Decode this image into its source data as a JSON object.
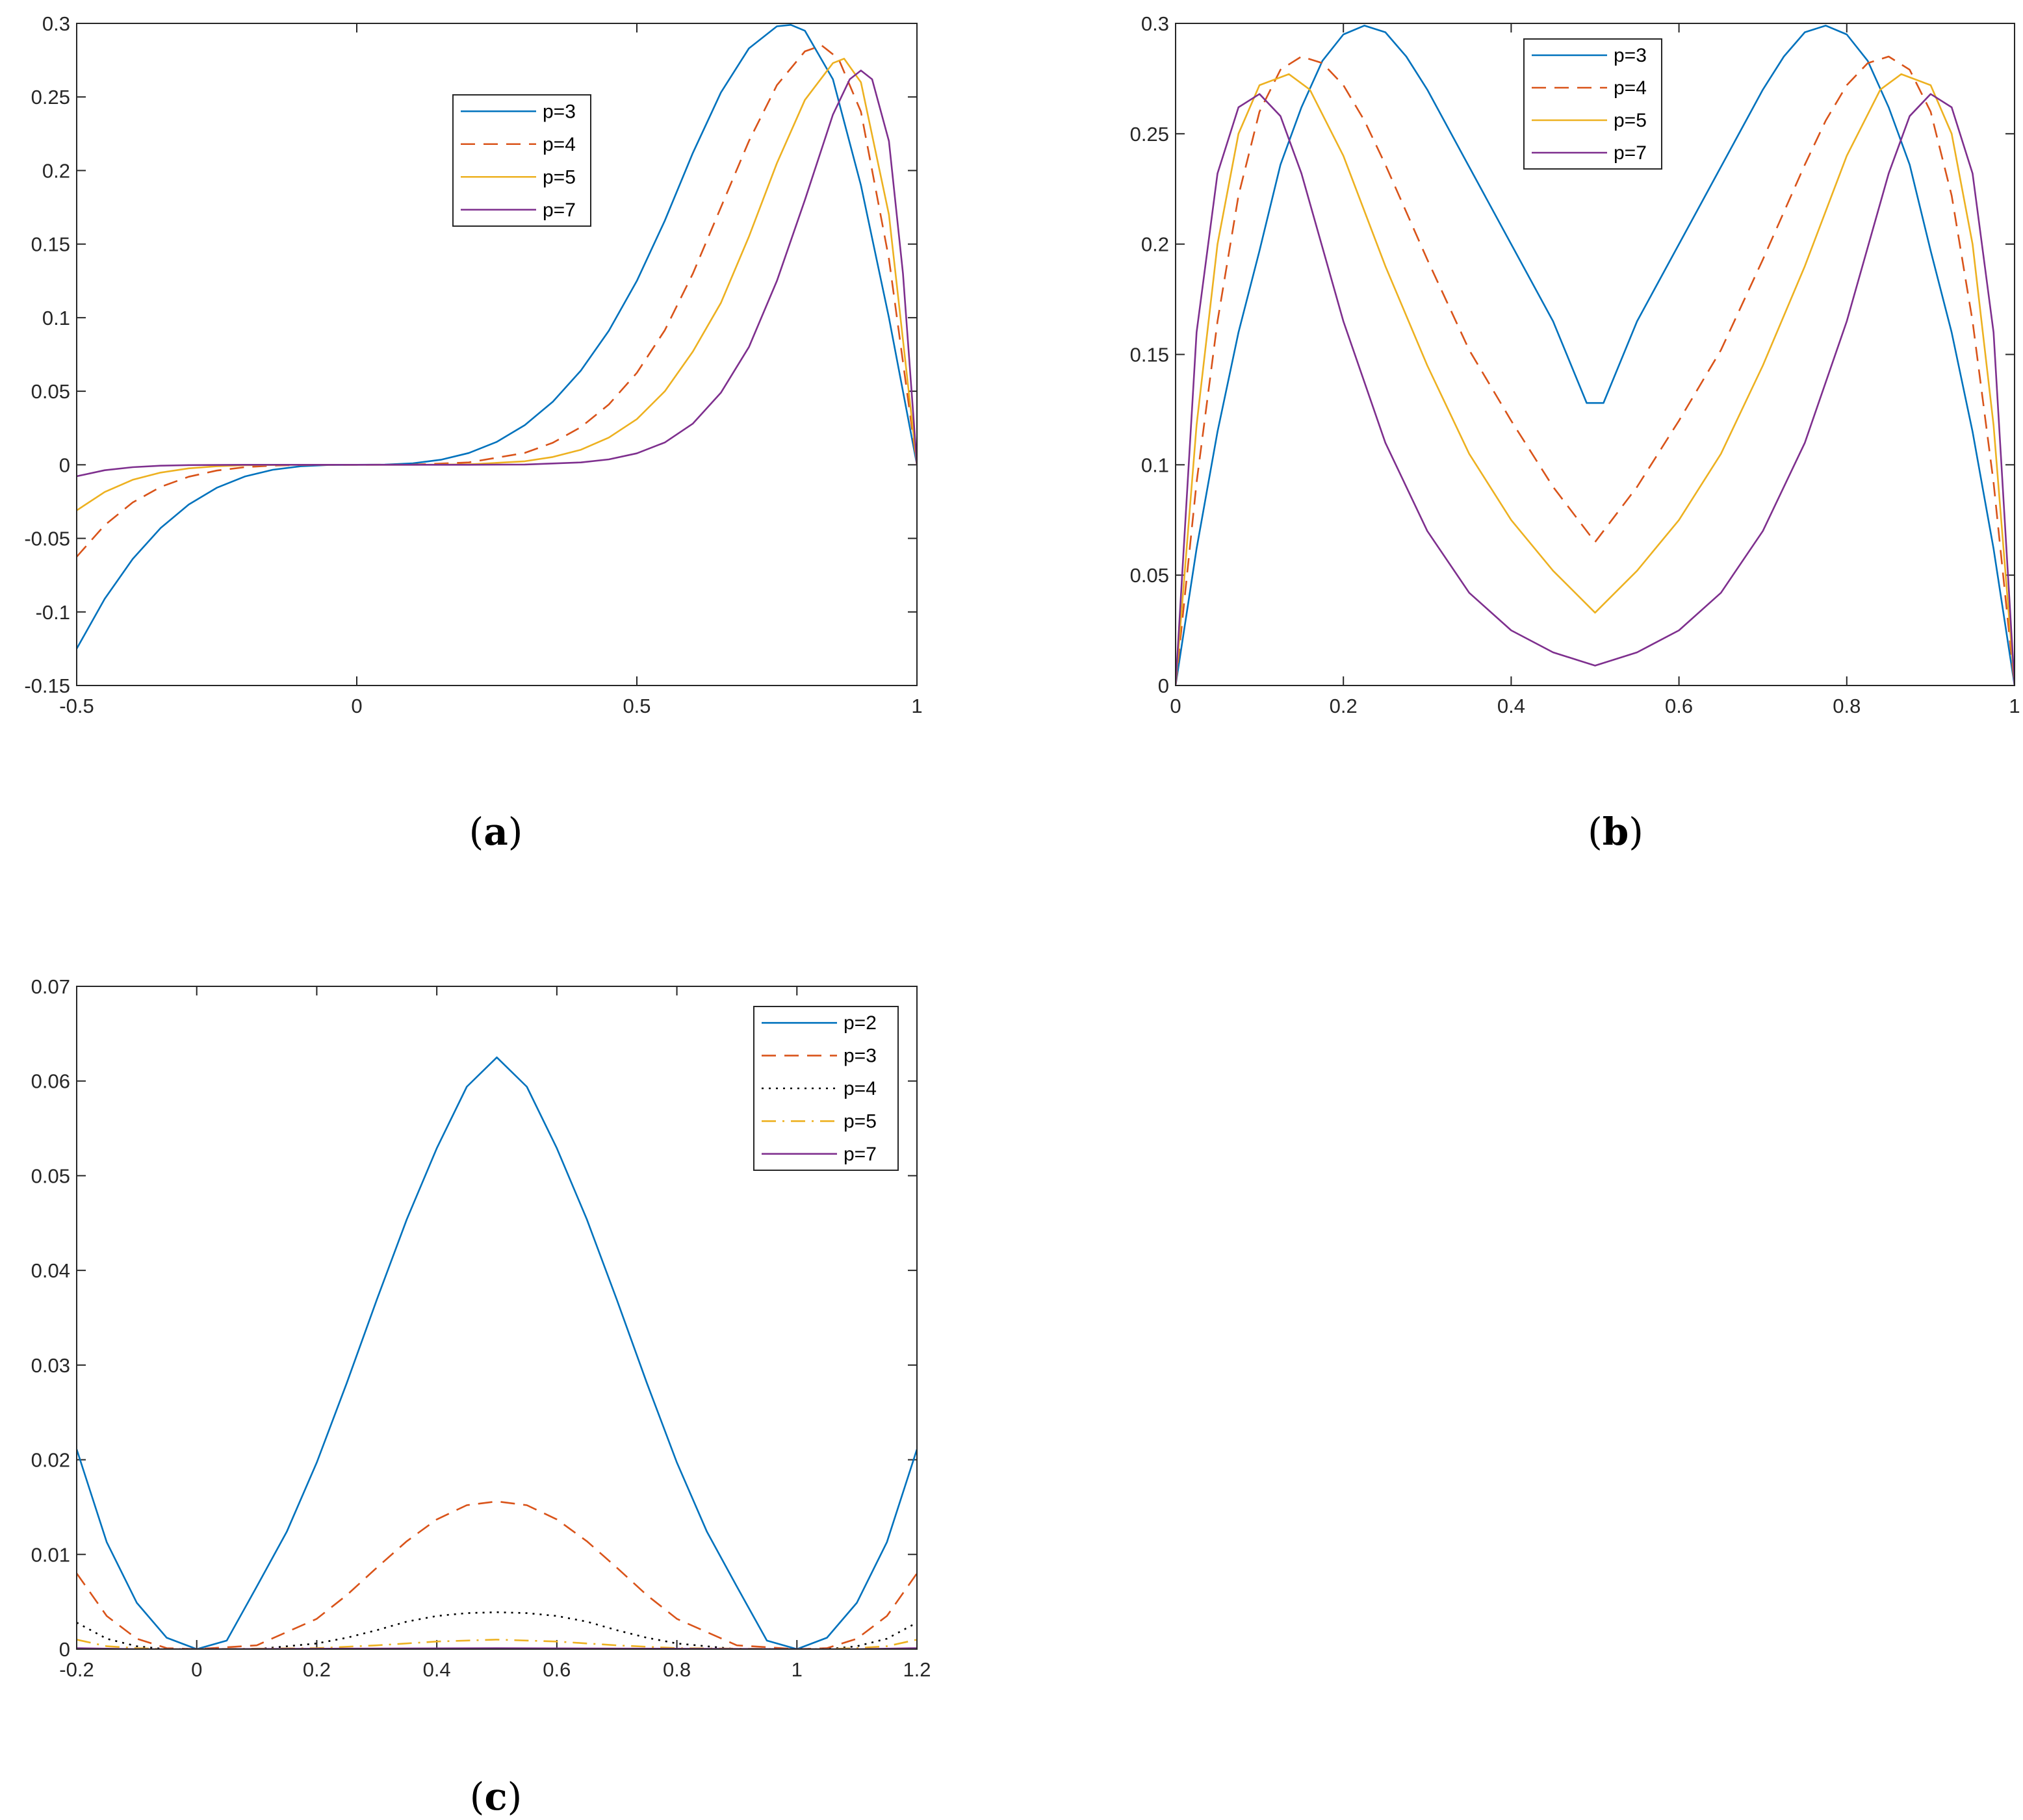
{
  "chart_data": [
    {
      "type": "line",
      "caption": "(a)",
      "caption_letter": "a",
      "xlim": [
        -0.5,
        1
      ],
      "ylim": [
        -0.15,
        0.3
      ],
      "xticks": [
        -0.5,
        0,
        0.5,
        1
      ],
      "xtick_labels": [
        "-0.5",
        "0",
        "0.5",
        "1"
      ],
      "yticks": [
        -0.15,
        -0.1,
        -0.05,
        0,
        0.05,
        0.1,
        0.15,
        0.2,
        0.25,
        0.3
      ],
      "ytick_labels": [
        "-0.15",
        "-0.1",
        "-0.05",
        "0",
        "0.05",
        "0.1",
        "0.15",
        "0.2",
        "0.25",
        "0.3"
      ],
      "legend_position": "upper-middle",
      "series": [
        {
          "name": "p=3",
          "color": "#0072BD",
          "style": "solid",
          "x": [
            -0.5,
            -0.45,
            -0.4,
            -0.35,
            -0.3,
            -0.25,
            -0.2,
            -0.15,
            -0.1,
            -0.05,
            0,
            0.05,
            0.1,
            0.15,
            0.2,
            0.25,
            0.3,
            0.35,
            0.4,
            0.45,
            0.5,
            0.55,
            0.6,
            0.65,
            0.7,
            0.75,
            0.775,
            0.8,
            0.85,
            0.9,
            0.95,
            1
          ],
          "y": [
            -0.125,
            -0.0911,
            -0.064,
            -0.0429,
            -0.027,
            -0.0156,
            -0.008,
            -0.0034,
            -0.001,
            -0.0001,
            0,
            0.0001,
            0.001,
            0.0034,
            0.008,
            0.0156,
            0.027,
            0.0429,
            0.064,
            0.0911,
            0.125,
            0.166,
            0.212,
            0.253,
            0.283,
            0.298,
            0.299,
            0.295,
            0.262,
            0.19,
            0.1,
            0
          ]
        },
        {
          "name": "p=4",
          "color": "#D95319",
          "style": "dashed",
          "x": [
            -0.5,
            -0.45,
            -0.4,
            -0.35,
            -0.3,
            -0.25,
            -0.2,
            -0.15,
            -0.1,
            -0.05,
            0,
            0.1,
            0.2,
            0.3,
            0.35,
            0.4,
            0.45,
            0.5,
            0.55,
            0.6,
            0.65,
            0.7,
            0.75,
            0.8,
            0.83,
            0.86,
            0.9,
            0.95,
            1
          ],
          "y": [
            -0.0625,
            -0.041,
            -0.0256,
            -0.015,
            -0.0081,
            -0.0039,
            -0.0016,
            -0.0005,
            -0.0001,
            0,
            0,
            0.0001,
            0.0016,
            0.0081,
            0.015,
            0.0256,
            0.041,
            0.0625,
            0.0915,
            0.13,
            0.175,
            0.22,
            0.258,
            0.281,
            0.285,
            0.276,
            0.24,
            0.14,
            0
          ]
        },
        {
          "name": "p=5",
          "color": "#EDB120",
          "style": "solid",
          "x": [
            -0.5,
            -0.45,
            -0.4,
            -0.35,
            -0.3,
            -0.25,
            -0.2,
            -0.1,
            0,
            0.1,
            0.2,
            0.3,
            0.35,
            0.4,
            0.45,
            0.5,
            0.55,
            0.6,
            0.65,
            0.7,
            0.75,
            0.8,
            0.85,
            0.87,
            0.9,
            0.95,
            1
          ],
          "y": [
            -0.031,
            -0.0185,
            -0.0102,
            -0.0053,
            -0.0024,
            -0.001,
            -0.0003,
            0,
            0,
            0,
            0.0003,
            0.0024,
            0.0053,
            0.0102,
            0.0185,
            0.031,
            0.05,
            0.077,
            0.11,
            0.155,
            0.205,
            0.248,
            0.273,
            0.276,
            0.26,
            0.17,
            0
          ]
        },
        {
          "name": "p=7",
          "color": "#7E2F8E",
          "style": "solid",
          "x": [
            -0.5,
            -0.45,
            -0.4,
            -0.35,
            -0.3,
            -0.25,
            -0.2,
            0,
            0.2,
            0.3,
            0.4,
            0.45,
            0.5,
            0.55,
            0.6,
            0.65,
            0.7,
            0.75,
            0.8,
            0.85,
            0.88,
            0.9,
            0.92,
            0.95,
            0.975,
            1
          ],
          "y": [
            -0.0078,
            -0.0037,
            -0.0016,
            -0.0006,
            -0.0002,
            -0.0001,
            0,
            0,
            0,
            0.0002,
            0.0016,
            0.0037,
            0.0078,
            0.0152,
            0.028,
            0.049,
            0.08,
            0.125,
            0.18,
            0.238,
            0.262,
            0.268,
            0.262,
            0.22,
            0.13,
            0
          ]
        }
      ]
    },
    {
      "type": "line",
      "caption": "(b)",
      "caption_letter": "b",
      "xlim": [
        0,
        1
      ],
      "ylim": [
        0,
        0.3
      ],
      "xticks": [
        0,
        0.2,
        0.4,
        0.6,
        0.8,
        1
      ],
      "xtick_labels": [
        "0",
        "0.2",
        "0.4",
        "0.6",
        "0.8",
        "1"
      ],
      "yticks": [
        0,
        0.05,
        0.1,
        0.15,
        0.2,
        0.25,
        0.3
      ],
      "ytick_labels": [
        "0",
        "0.05",
        "0.1",
        "0.15",
        "0.2",
        "0.25",
        "0.3"
      ],
      "legend_position": "top-middle",
      "series": [
        {
          "name": "p=3",
          "color": "#0072BD",
          "style": "solid",
          "x": [
            0,
            0.025,
            0.05,
            0.075,
            0.1,
            0.125,
            0.15,
            0.175,
            0.2,
            0.225,
            0.25,
            0.275,
            0.3,
            0.35,
            0.4,
            0.45,
            0.49,
            0.5,
            0.51,
            0.55,
            0.6,
            0.65,
            0.7,
            0.725,
            0.75,
            0.775,
            0.8,
            0.825,
            0.85,
            0.875,
            0.9,
            0.925,
            0.95,
            0.975,
            1
          ],
          "y": [
            0,
            0.062,
            0.115,
            0.16,
            0.197,
            0.236,
            0.262,
            0.283,
            0.295,
            0.299,
            0.296,
            0.285,
            0.27,
            0.235,
            0.2,
            0.165,
            0.128,
            0.128,
            0.128,
            0.165,
            0.2,
            0.235,
            0.27,
            0.285,
            0.296,
            0.299,
            0.295,
            0.283,
            0.262,
            0.236,
            0.197,
            0.16,
            0.115,
            0.062,
            0
          ]
        },
        {
          "name": "p=4",
          "color": "#D95319",
          "style": "dashed",
          "x": [
            0,
            0.025,
            0.05,
            0.075,
            0.1,
            0.125,
            0.15,
            0.175,
            0.2,
            0.225,
            0.25,
            0.3,
            0.35,
            0.4,
            0.45,
            0.5,
            0.55,
            0.6,
            0.65,
            0.7,
            0.75,
            0.775,
            0.8,
            0.825,
            0.85,
            0.875,
            0.9,
            0.925,
            0.95,
            0.975,
            1
          ],
          "y": [
            0,
            0.092,
            0.165,
            0.222,
            0.26,
            0.279,
            0.285,
            0.282,
            0.272,
            0.256,
            0.236,
            0.193,
            0.152,
            0.12,
            0.09,
            0.065,
            0.09,
            0.12,
            0.152,
            0.193,
            0.236,
            0.256,
            0.272,
            0.282,
            0.285,
            0.279,
            0.26,
            0.222,
            0.165,
            0.092,
            0
          ]
        },
        {
          "name": "p=5",
          "color": "#EDB120",
          "style": "solid",
          "x": [
            0,
            0.025,
            0.05,
            0.075,
            0.1,
            0.135,
            0.16,
            0.2,
            0.25,
            0.3,
            0.35,
            0.4,
            0.45,
            0.5,
            0.55,
            0.6,
            0.65,
            0.7,
            0.75,
            0.8,
            0.84,
            0.865,
            0.9,
            0.925,
            0.95,
            0.975,
            1
          ],
          "y": [
            0,
            0.118,
            0.2,
            0.25,
            0.272,
            0.277,
            0.27,
            0.24,
            0.19,
            0.145,
            0.105,
            0.075,
            0.052,
            0.033,
            0.052,
            0.075,
            0.105,
            0.145,
            0.19,
            0.24,
            0.27,
            0.277,
            0.272,
            0.25,
            0.2,
            0.118,
            0
          ]
        },
        {
          "name": "p=7",
          "color": "#7E2F8E",
          "style": "solid",
          "x": [
            0,
            0.025,
            0.05,
            0.075,
            0.1,
            0.125,
            0.15,
            0.2,
            0.25,
            0.3,
            0.35,
            0.4,
            0.45,
            0.5,
            0.55,
            0.6,
            0.65,
            0.7,
            0.75,
            0.8,
            0.85,
            0.875,
            0.9,
            0.925,
            0.95,
            0.975,
            1
          ],
          "y": [
            0,
            0.16,
            0.232,
            0.262,
            0.268,
            0.258,
            0.232,
            0.165,
            0.11,
            0.07,
            0.042,
            0.025,
            0.015,
            0.009,
            0.015,
            0.025,
            0.042,
            0.07,
            0.11,
            0.165,
            0.232,
            0.258,
            0.268,
            0.262,
            0.232,
            0.16,
            0
          ]
        }
      ]
    },
    {
      "type": "line",
      "caption": "(c)",
      "caption_letter": "c",
      "xlim": [
        -0.2,
        1.2
      ],
      "ylim": [
        0,
        0.07
      ],
      "xticks": [
        -0.2,
        0,
        0.2,
        0.4,
        0.6,
        0.8,
        1,
        1.2
      ],
      "xtick_labels": [
        "-0.2",
        "0",
        "0.2",
        "0.4",
        "0.6",
        "0.8",
        "1",
        "1.2"
      ],
      "yticks": [
        0,
        0.01,
        0.02,
        0.03,
        0.04,
        0.05,
        0.06,
        0.07
      ],
      "ytick_labels": [
        "0",
        "0.01",
        "0.02",
        "0.03",
        "0.04",
        "0.05",
        "0.06",
        "0.07"
      ],
      "legend_position": "top-right",
      "series": [
        {
          "name": "p=2",
          "color": "#0072BD",
          "style": "solid",
          "x": [
            -0.2,
            -0.15,
            -0.1,
            -0.05,
            0,
            0.05,
            0.1,
            0.15,
            0.2,
            0.25,
            0.3,
            0.35,
            0.4,
            0.45,
            0.5,
            0.55,
            0.6,
            0.65,
            0.7,
            0.75,
            0.8,
            0.85,
            0.9,
            0.95,
            1,
            1.05,
            1.1,
            1.15,
            1.2
          ],
          "y": [
            0.0211,
            0.0113,
            0.0049,
            0.0012,
            0,
            0.0009,
            0.0066,
            0.0124,
            0.0197,
            0.0281,
            0.0369,
            0.0454,
            0.0529,
            0.0594,
            0.0625,
            0.0594,
            0.0529,
            0.0454,
            0.0369,
            0.0281,
            0.0197,
            0.0124,
            0.0066,
            0.0009,
            0,
            0.0012,
            0.0049,
            0.0113,
            0.0211
          ]
        },
        {
          "name": "p=3",
          "color": "#D95319",
          "style": "dashed",
          "x": [
            -0.2,
            -0.15,
            -0.1,
            -0.05,
            0,
            0.1,
            0.2,
            0.25,
            0.3,
            0.35,
            0.4,
            0.45,
            0.5,
            0.55,
            0.6,
            0.65,
            0.7,
            0.75,
            0.8,
            0.9,
            1,
            1.05,
            1.1,
            1.15,
            1.2
          ],
          "y": [
            0.008,
            0.0035,
            0.0011,
            0.0001,
            0,
            0.0004,
            0.0032,
            0.0057,
            0.0086,
            0.0114,
            0.0137,
            0.0152,
            0.0156,
            0.0152,
            0.0137,
            0.0114,
            0.0086,
            0.0057,
            0.0032,
            0.0004,
            0,
            0.0001,
            0.0011,
            0.0035,
            0.008
          ]
        },
        {
          "name": "p=4",
          "color": "#000000",
          "style": "dotted",
          "x": [
            -0.2,
            -0.15,
            -0.1,
            -0.05,
            0,
            0.1,
            0.2,
            0.25,
            0.3,
            0.35,
            0.4,
            0.45,
            0.5,
            0.55,
            0.6,
            0.65,
            0.7,
            0.75,
            0.8,
            0.9,
            1,
            1.05,
            1.1,
            1.15,
            1.2
          ],
          "y": [
            0.0028,
            0.0011,
            0.0003,
            0,
            0,
            0,
            0.0006,
            0.0012,
            0.002,
            0.0029,
            0.0035,
            0.0038,
            0.0039,
            0.0038,
            0.0035,
            0.0029,
            0.002,
            0.0012,
            0.0006,
            0,
            0,
            0,
            0.0003,
            0.0011,
            0.0028
          ]
        },
        {
          "name": "p=5",
          "color": "#EDB120",
          "style": "dashdot",
          "x": [
            -0.2,
            -0.15,
            -0.1,
            -0.05,
            0,
            0.2,
            0.3,
            0.4,
            0.5,
            0.6,
            0.7,
            0.8,
            1,
            1.05,
            1.1,
            1.15,
            1.2
          ],
          "y": [
            0.001,
            0.0003,
            0.0001,
            0,
            0,
            0.0001,
            0.0004,
            0.0008,
            0.001,
            0.0008,
            0.0004,
            0.0001,
            0,
            0,
            0.0001,
            0.0003,
            0.001
          ]
        },
        {
          "name": "p=7",
          "color": "#7E2F8E",
          "style": "solid",
          "x": [
            -0.2,
            -0.1,
            0,
            0.5,
            1,
            1.1,
            1.2
          ],
          "y": [
            0.0001,
            0,
            0,
            0.0001,
            0,
            0,
            0.0001
          ]
        }
      ]
    }
  ]
}
